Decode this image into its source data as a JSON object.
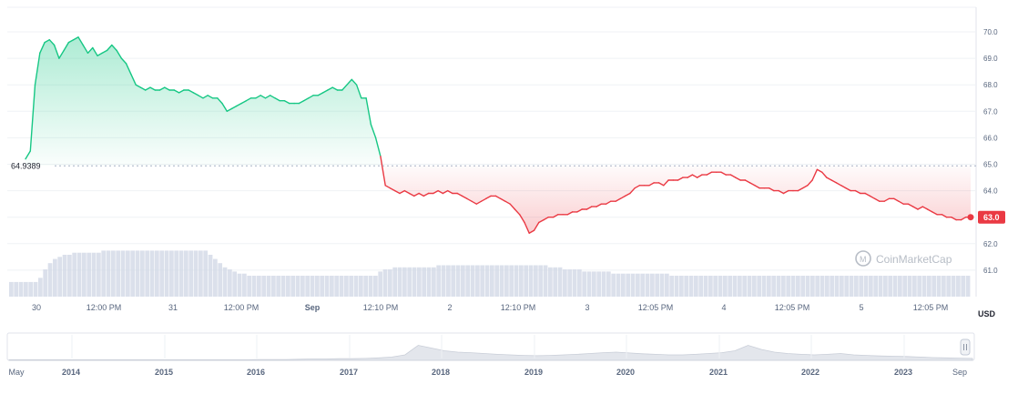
{
  "chart_data": {
    "type": "area",
    "currency_label": "USD",
    "watermark": "CoinMarketCap",
    "reference_value": 64.9389,
    "reference_label": "64.9389",
    "current_value": 63.0,
    "current_label": "63.0",
    "ylim": [
      61.0,
      70.5
    ],
    "y_ticks": [
      "70.0",
      "69.0",
      "68.0",
      "67.0",
      "66.0",
      "65.0",
      "64.0",
      "63.0",
      "62.0",
      "61.0"
    ],
    "x_ticks": [
      {
        "label": "30",
        "bold": false
      },
      {
        "label": "12:00 PM",
        "bold": false
      },
      {
        "label": "31",
        "bold": false
      },
      {
        "label": "12:00 PM",
        "bold": false
      },
      {
        "label": "Sep",
        "bold": true
      },
      {
        "label": "12:10 PM",
        "bold": false
      },
      {
        "label": "2",
        "bold": false
      },
      {
        "label": "12:10 PM",
        "bold": false
      },
      {
        "label": "3",
        "bold": false
      },
      {
        "label": "12:05 PM",
        "bold": false
      },
      {
        "label": "4",
        "bold": false
      },
      {
        "label": "12:05 PM",
        "bold": false
      },
      {
        "label": "5",
        "bold": false
      },
      {
        "label": "12:05 PM",
        "bold": false
      }
    ],
    "series": [
      {
        "values": [
          65.2,
          65.5,
          68.0,
          69.2,
          69.6,
          69.7,
          69.5,
          69.0,
          69.3,
          69.6,
          69.7,
          69.8,
          69.5,
          69.2,
          69.4,
          69.1,
          69.2,
          69.3,
          69.5,
          69.3,
          69.0,
          68.8,
          68.4,
          68.0,
          67.9,
          67.8,
          67.9,
          67.8,
          67.8,
          67.9,
          67.8,
          67.8,
          67.7,
          67.8,
          67.8,
          67.7,
          67.6,
          67.5,
          67.6,
          67.5,
          67.5,
          67.3,
          67.0,
          67.1,
          67.2,
          67.3,
          67.4,
          67.5,
          67.5,
          67.6,
          67.5,
          67.6,
          67.5,
          67.4,
          67.4,
          67.3,
          67.3,
          67.3,
          67.4,
          67.5,
          67.6,
          67.6,
          67.7,
          67.8,
          67.9,
          67.8,
          67.8,
          68.0,
          68.2,
          68.0,
          67.5,
          67.5,
          66.5,
          66.0,
          65.3,
          64.2,
          64.1,
          64.0,
          63.9,
          64.0,
          63.9,
          63.8,
          63.9,
          63.8,
          63.9,
          63.9,
          64.0,
          63.9,
          64.0,
          63.9,
          63.9,
          63.8,
          63.7,
          63.6,
          63.5,
          63.6,
          63.7,
          63.8,
          63.8,
          63.7,
          63.6,
          63.5,
          63.3,
          63.1,
          62.8,
          62.4,
          62.5,
          62.8,
          62.9,
          63.0,
          63.0,
          63.1,
          63.1,
          63.1,
          63.2,
          63.2,
          63.3,
          63.3,
          63.4,
          63.4,
          63.5,
          63.5,
          63.6,
          63.6,
          63.7,
          63.8,
          63.9,
          64.1,
          64.2,
          64.2,
          64.2,
          64.3,
          64.3,
          64.2,
          64.4,
          64.4,
          64.4,
          64.5,
          64.5,
          64.6,
          64.5,
          64.6,
          64.6,
          64.7,
          64.7,
          64.7,
          64.6,
          64.6,
          64.5,
          64.4,
          64.4,
          64.3,
          64.2,
          64.1,
          64.1,
          64.1,
          64.0,
          64.0,
          63.9,
          64.0,
          64.0,
          64.0,
          64.1,
          64.2,
          64.4,
          64.8,
          64.7,
          64.5,
          64.4,
          64.3,
          64.2,
          64.1,
          64.0,
          64.0,
          63.9,
          63.9,
          63.8,
          63.7,
          63.6,
          63.6,
          63.7,
          63.7,
          63.6,
          63.5,
          63.5,
          63.4,
          63.3,
          63.4,
          63.3,
          63.2,
          63.1,
          63.1,
          63.0,
          63.0,
          62.9,
          62.9,
          63.0,
          63.0
        ]
      }
    ],
    "volume": [
      0.07,
      0.07,
      0.07,
      0.07,
      0.07,
      0.07,
      0.09,
      0.13,
      0.16,
      0.18,
      0.19,
      0.2,
      0.2,
      0.21,
      0.21,
      0.21,
      0.21,
      0.21,
      0.21,
      0.22,
      0.22,
      0.22,
      0.22,
      0.22,
      0.22,
      0.22,
      0.22,
      0.22,
      0.22,
      0.22,
      0.22,
      0.22,
      0.22,
      0.22,
      0.22,
      0.22,
      0.22,
      0.22,
      0.22,
      0.22,
      0.22,
      0.2,
      0.18,
      0.16,
      0.14,
      0.13,
      0.12,
      0.11,
      0.11,
      0.1,
      0.1,
      0.1,
      0.1,
      0.1,
      0.1,
      0.1,
      0.1,
      0.1,
      0.1,
      0.1,
      0.1,
      0.1,
      0.1,
      0.1,
      0.1,
      0.1,
      0.1,
      0.1,
      0.1,
      0.1,
      0.1,
      0.1,
      0.1,
      0.1,
      0.1,
      0.1,
      0.12,
      0.13,
      0.13,
      0.14,
      0.14,
      0.14,
      0.14,
      0.14,
      0.14,
      0.14,
      0.14,
      0.14,
      0.15,
      0.15,
      0.15,
      0.15,
      0.15,
      0.15,
      0.15,
      0.15,
      0.15,
      0.15,
      0.15,
      0.15,
      0.15,
      0.15,
      0.15,
      0.15,
      0.15,
      0.15,
      0.15,
      0.15,
      0.15,
      0.15,
      0.15,
      0.14,
      0.14,
      0.14,
      0.13,
      0.13,
      0.13,
      0.13,
      0.12,
      0.12,
      0.12,
      0.12,
      0.12,
      0.12,
      0.11,
      0.11,
      0.11,
      0.11,
      0.11,
      0.11,
      0.11,
      0.11,
      0.11,
      0.11,
      0.11,
      0.11,
      0.1,
      0.1,
      0.1,
      0.1,
      0.1,
      0.1,
      0.1,
      0.1,
      0.1,
      0.1,
      0.1,
      0.1,
      0.1,
      0.1,
      0.1,
      0.1,
      0.1,
      0.1,
      0.1,
      0.1,
      0.1,
      0.1,
      0.1,
      0.1,
      0.1,
      0.1,
      0.1,
      0.1,
      0.1,
      0.1,
      0.1,
      0.1,
      0.1,
      0.1,
      0.1,
      0.1,
      0.1,
      0.1,
      0.1,
      0.1,
      0.1,
      0.1,
      0.1,
      0.1,
      0.1,
      0.1,
      0.1,
      0.1,
      0.1,
      0.1,
      0.1,
      0.1,
      0.1,
      0.1,
      0.1,
      0.1,
      0.1,
      0.1,
      0.1,
      0.1,
      0.1,
      0.1
    ],
    "navigator": {
      "tick_labels": [
        {
          "label": "May",
          "bold": false
        },
        {
          "label": "2014",
          "bold": true
        },
        {
          "label": "2015",
          "bold": true
        },
        {
          "label": "2016",
          "bold": true
        },
        {
          "label": "2017",
          "bold": true
        },
        {
          "label": "2018",
          "bold": true
        },
        {
          "label": "2019",
          "bold": true
        },
        {
          "label": "2020",
          "bold": true
        },
        {
          "label": "2021",
          "bold": true
        },
        {
          "label": "2022",
          "bold": true
        },
        {
          "label": "2023",
          "bold": true
        },
        {
          "label": "Sep",
          "bold": false
        }
      ],
      "values": [
        0.02,
        0.02,
        0.02,
        0.02,
        0.02,
        0.02,
        0.02,
        0.02,
        0.02,
        0.02,
        0.02,
        0.02,
        0.02,
        0.02,
        0.02,
        0.02,
        0.02,
        0.02,
        0.02,
        0.03,
        0.03,
        0.03,
        0.04,
        0.05,
        0.05,
        0.06,
        0.06,
        0.07,
        0.09,
        0.12,
        0.2,
        0.55,
        0.45,
        0.35,
        0.3,
        0.28,
        0.25,
        0.22,
        0.2,
        0.18,
        0.17,
        0.18,
        0.2,
        0.22,
        0.25,
        0.28,
        0.3,
        0.27,
        0.24,
        0.22,
        0.2,
        0.2,
        0.22,
        0.25,
        0.28,
        0.35,
        0.55,
        0.4,
        0.3,
        0.25,
        0.22,
        0.2,
        0.22,
        0.25,
        0.2,
        0.18,
        0.16,
        0.15,
        0.14,
        0.12,
        0.1,
        0.09,
        0.08,
        0.07
      ],
      "colors": {
        "fill": "#e3e6ec",
        "line": "#c9ced8"
      }
    },
    "colors": {
      "up": "#16c784",
      "down": "#ea3943",
      "up_fill": "#16c784",
      "down_fill": "#ea3943",
      "grid": "#eff2f5",
      "axis_text": "#58667e",
      "volume": "#cfd6e4",
      "watermark": "#b7bdc6",
      "reference_line": "#a6b0c3"
    }
  }
}
